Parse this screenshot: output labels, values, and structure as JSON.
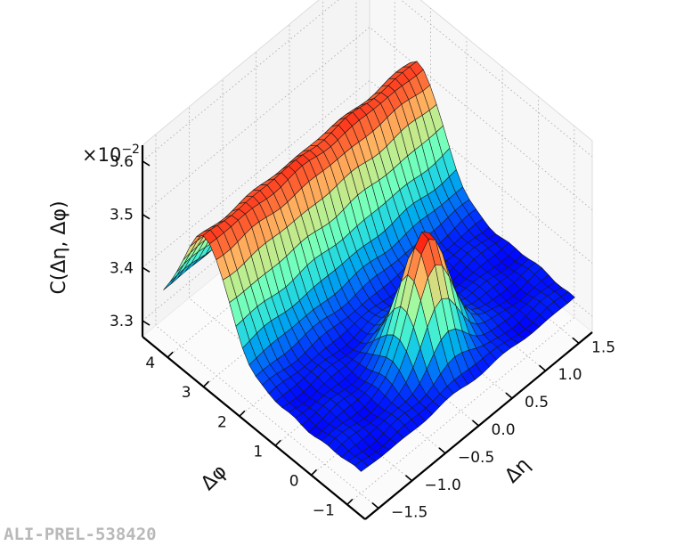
{
  "chart_data": {
    "type": "surface",
    "title": "",
    "zlabel": "C(Δη, Δφ)",
    "z_multiplier": "×10",
    "z_multiplier_exp": "−2",
    "xlabel": "Δη",
    "ylabel": "Δφ",
    "xlim": [
      -1.7,
      1.7
    ],
    "ylim": [
      -1.5,
      4.7
    ],
    "zlim": [
      3.27,
      3.63
    ],
    "x_ticks": [
      {
        "value": -1.5,
        "label": "−1.5"
      },
      {
        "value": -1.0,
        "label": "−1.0"
      },
      {
        "value": -0.5,
        "label": "−0.5"
      },
      {
        "value": 0.0,
        "label": "0.0"
      },
      {
        "value": 0.5,
        "label": "0.5"
      },
      {
        "value": 1.0,
        "label": "1.0"
      },
      {
        "value": 1.5,
        "label": "1.5"
      }
    ],
    "y_ticks": [
      {
        "value": -1,
        "label": "−1"
      },
      {
        "value": 0,
        "label": "0"
      },
      {
        "value": 1,
        "label": "1"
      },
      {
        "value": 2,
        "label": "2"
      },
      {
        "value": 3,
        "label": "3"
      },
      {
        "value": 4,
        "label": "4"
      }
    ],
    "z_ticks": [
      {
        "value": 3.3,
        "label": "3.3"
      },
      {
        "value": 3.4,
        "label": "3.4"
      },
      {
        "value": 3.5,
        "label": "3.5"
      },
      {
        "value": 3.6,
        "label": "3.6"
      }
    ],
    "colormap": "rainbow",
    "grid": true,
    "surface": {
      "eta_range": [
        -1.6,
        1.6
      ],
      "phi_range": [
        -1.2,
        4.3
      ],
      "baseline": 3.33,
      "near_side_peak_height": 3.55,
      "near_side_peak_width_eta": 0.28,
      "near_side_peak_width_phi": 0.42,
      "away_side_ridge_height": 3.53,
      "away_side_ridge_center_phi": 3.14,
      "away_side_ridge_width_phi": 0.65
    }
  },
  "watermark": "ALI-PREL-538420"
}
